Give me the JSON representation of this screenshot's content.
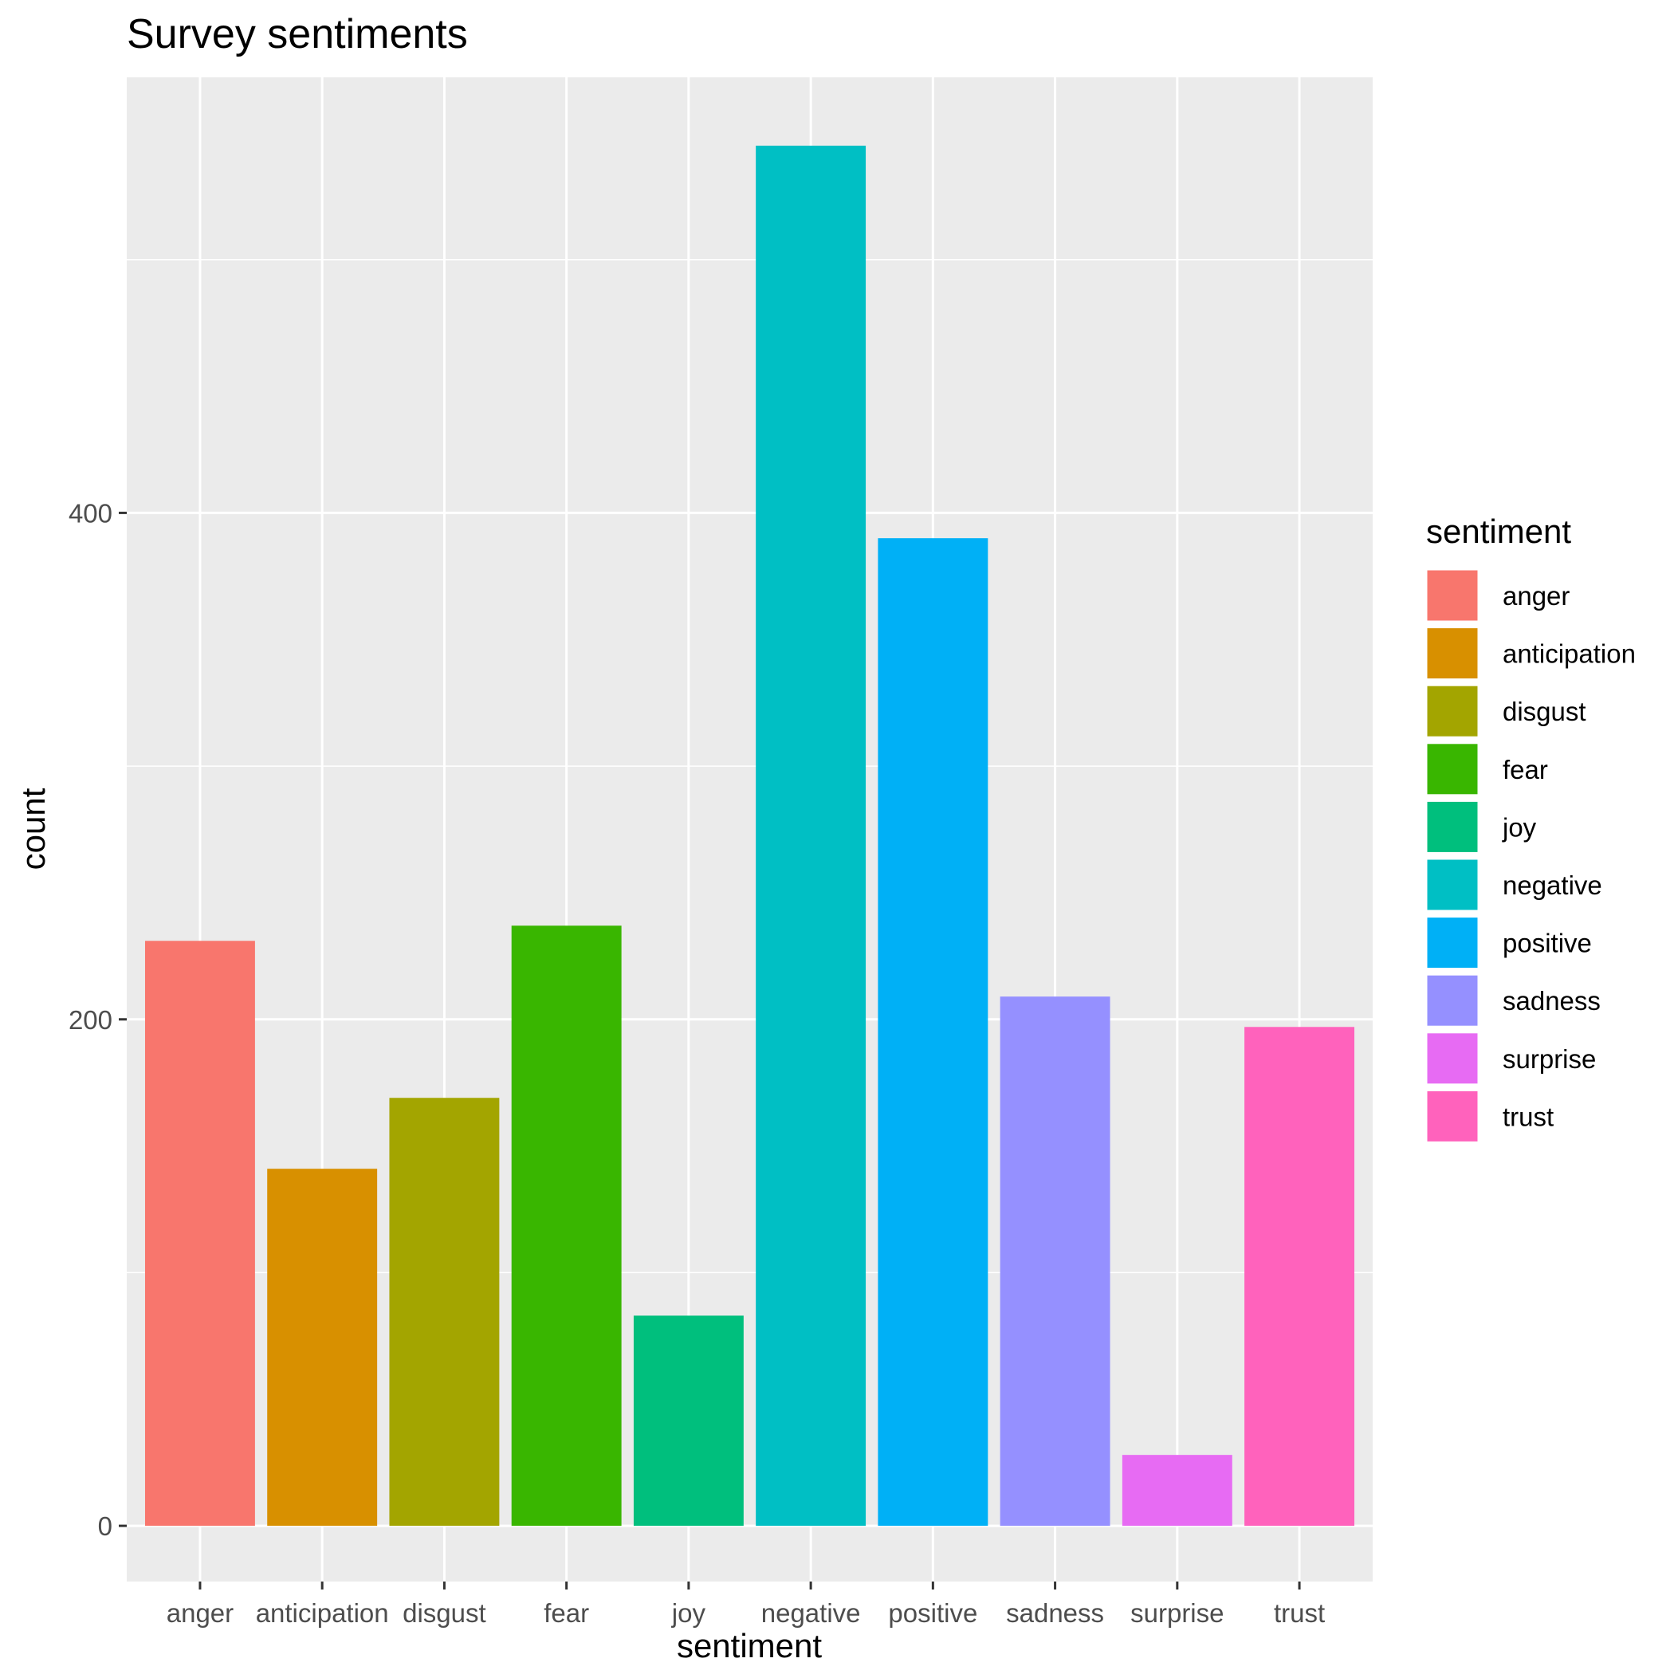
{
  "chart_data": {
    "type": "bar",
    "title": "Survey sentiments",
    "xlabel": "sentiment",
    "ylabel": "count",
    "categories": [
      "anger",
      "anticipation",
      "disgust",
      "fear",
      "joy",
      "negative",
      "positive",
      "sadness",
      "surprise",
      "trust"
    ],
    "values": [
      231,
      141,
      169,
      237,
      83,
      545,
      390,
      209,
      28,
      197
    ],
    "colors": [
      "#F8766D",
      "#D89000",
      "#A3A500",
      "#39B600",
      "#00BF7D",
      "#00BFC4",
      "#00B0F6",
      "#9590FF",
      "#E76BF3",
      "#FF62BC"
    ],
    "ylim": [
      -22,
      572
    ],
    "yticks": [
      0,
      200,
      400
    ],
    "yminor": [
      100,
      300,
      500
    ],
    "grid": true,
    "legend": {
      "title": "sentiment",
      "position": "right",
      "items": [
        "anger",
        "anticipation",
        "disgust",
        "fear",
        "joy",
        "negative",
        "positive",
        "sadness",
        "surprise",
        "trust"
      ]
    },
    "panel_background": "#EBEBEB",
    "grid_color": "#FFFFFF"
  }
}
